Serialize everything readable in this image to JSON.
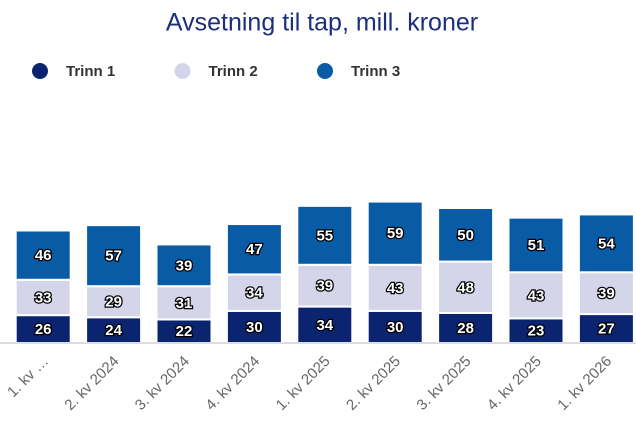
{
  "chart_data": {
    "type": "stacked_bar",
    "title": "Avsetning til tap, mill. kroner",
    "categories": [
      "1. kv …",
      "2. kv 2024",
      "3. kv 2024",
      "4. kv 2024",
      "1. kv 2025",
      "2. kv 2025",
      "3. kv 2025",
      "4. kv 2025",
      "1. kv 2026"
    ],
    "series": [
      {
        "name": "Trinn 1",
        "color": "#0b2470",
        "values": [
          26,
          24,
          22,
          30,
          34,
          30,
          28,
          23,
          27
        ]
      },
      {
        "name": "Trinn 2",
        "color": "#d5d5ea",
        "values": [
          33,
          29,
          31,
          34,
          39,
          43,
          48,
          43,
          39
        ]
      },
      {
        "name": "Trinn 3",
        "color": "#0a5ba6",
        "values": [
          46,
          57,
          39,
          47,
          55,
          59,
          50,
          51,
          54
        ]
      }
    ],
    "ylim": [
      0,
      140
    ],
    "legend": "top-left"
  }
}
